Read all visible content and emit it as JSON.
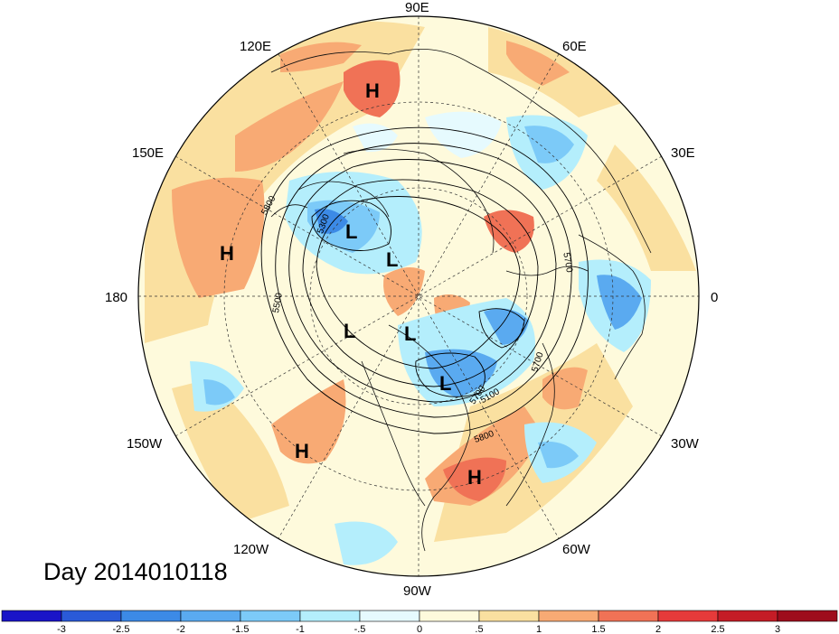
{
  "title": "Day 2014010118",
  "longitude_labels": {
    "deg90e": "90E",
    "deg60e": "60E",
    "deg30e": "30E",
    "deg0": "0",
    "deg30w": "30W",
    "deg60w": "60W",
    "deg90w": "90W",
    "deg120w": "120W",
    "deg150w": "150W",
    "deg180": "180",
    "deg150e": "150E",
    "deg120e": "120E"
  },
  "pressure_centers": [
    "H",
    "H",
    "H",
    "H",
    "L",
    "L",
    "L",
    "L",
    "L"
  ],
  "contour_labels": [
    "5800",
    "5500",
    "5300",
    "5700",
    "5700",
    "5700",
    "5800",
    "5100"
  ],
  "colorbar": {
    "ticks": [
      "-3",
      "-2.5",
      "-2",
      "-1.5",
      "-1",
      "-.5",
      "0",
      ".5",
      "1",
      "1.5",
      "2",
      "2.5",
      "3"
    ],
    "colors": [
      "#1a14c8",
      "#2a5ad8",
      "#3c8ae6",
      "#5aaaf0",
      "#7ccaf8",
      "#b4eefc",
      "#e6fafe",
      "#fefadc",
      "#fae0a0",
      "#f8aa74",
      "#f07256",
      "#e63a3a",
      "#c41c26",
      "#9e0c1c"
    ]
  }
}
